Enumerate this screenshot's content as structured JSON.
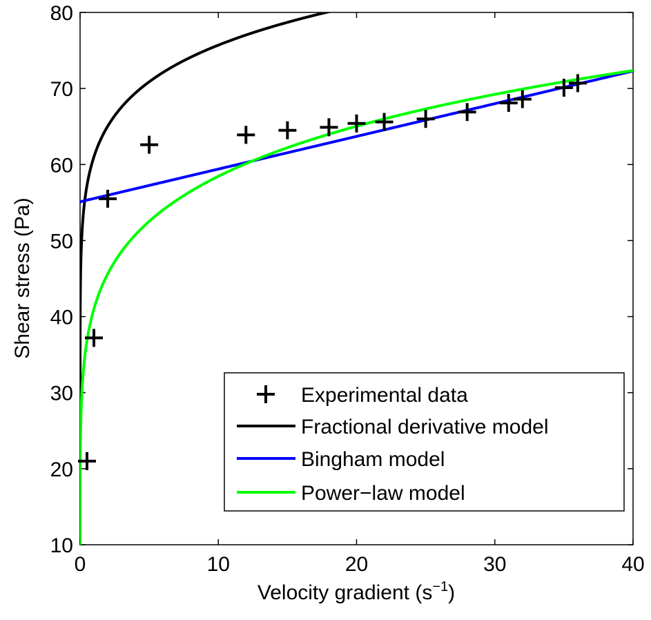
{
  "chart_data": {
    "type": "line",
    "title": "",
    "xlabel": "Velocity gradient (s",
    "xlabel_sup": "−1",
    "xlabel_end": ")",
    "ylabel": "Shear stress (Pa)",
    "xlim": [
      0,
      40
    ],
    "ylim": [
      10,
      80
    ],
    "xticks": [
      0,
      10,
      20,
      30,
      40
    ],
    "yticks": [
      10,
      20,
      30,
      40,
      50,
      60,
      70,
      80
    ],
    "grid": false,
    "legend_position": "bottom-right",
    "series": [
      {
        "name": "Experimental data",
        "kind": "scatter",
        "marker": "plus",
        "color": "#000000",
        "x": [
          0.5,
          1,
          2,
          5,
          12,
          15,
          18,
          20,
          22,
          25,
          28,
          31,
          32,
          35,
          36
        ],
        "y": [
          21,
          37.2,
          55.5,
          62.6,
          63.9,
          64.5,
          64.9,
          65.4,
          65.6,
          66,
          66.9,
          68.1,
          68.6,
          70.1,
          70.7
        ]
      },
      {
        "name": "Fractional derivative model",
        "kind": "line",
        "color": "#000000",
        "model": "fractional",
        "params": {
          "tau0": 10,
          "k": 51,
          "n": 0.11
        }
      },
      {
        "name": "Bingham model",
        "kind": "line",
        "color": "#0000ff",
        "model": "linear",
        "params": {
          "tau0": 55.1,
          "k": 0.43
        }
      },
      {
        "name": "Power−law model",
        "kind": "line",
        "color": "#00ff00",
        "model": "power",
        "params": {
          "k": 41,
          "n": 0.154
        }
      }
    ]
  }
}
